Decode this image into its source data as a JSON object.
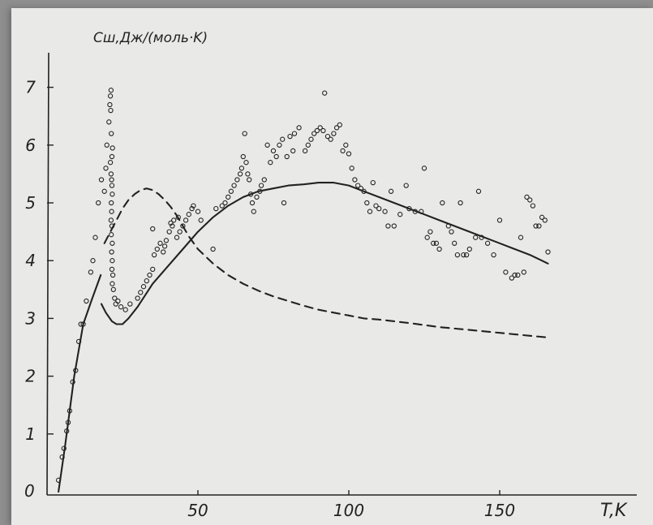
{
  "chart_data": {
    "type": "scatter",
    "title": "",
    "ylabel": "Cш,Дж/(моль·K)",
    "xlabel": "T,K",
    "origin_label": "0",
    "xlim": [
      0,
      190
    ],
    "ylim": [
      0,
      7.5
    ],
    "x_ticks": [
      {
        "value": 50,
        "label": "50"
      },
      {
        "value": 100,
        "label": "100"
      },
      {
        "value": 150,
        "label": "150"
      }
    ],
    "y_ticks": [
      {
        "value": 1,
        "label": "1"
      },
      {
        "value": 2,
        "label": "2"
      },
      {
        "value": 3,
        "label": "3"
      },
      {
        "value": 4,
        "label": "4"
      },
      {
        "value": 5,
        "label": "5"
      },
      {
        "value": 6,
        "label": "6"
      },
      {
        "value": 7,
        "label": "7"
      }
    ],
    "grid": false,
    "colors": {
      "ink": "#222222",
      "paper": "#e9e9e7"
    },
    "series": [
      {
        "kind": "markers",
        "marker": "open-circle",
        "points": [
          [
            3.8,
            0.2
          ],
          [
            5,
            0.6
          ],
          [
            5.6,
            0.75
          ],
          [
            6.5,
            1.05
          ],
          [
            7,
            1.2
          ],
          [
            7.5,
            1.4
          ],
          [
            8.5,
            1.9
          ],
          [
            9.5,
            2.1
          ],
          [
            10.5,
            2.6
          ],
          [
            11.2,
            2.9
          ],
          [
            12,
            2.9
          ],
          [
            13,
            3.3
          ],
          [
            14.5,
            3.8
          ],
          [
            15.2,
            4.0
          ],
          [
            16,
            4.4
          ],
          [
            17,
            5.0
          ],
          [
            18,
            5.4
          ],
          [
            19,
            5.2
          ],
          [
            19.5,
            5.6
          ],
          [
            19.8,
            6.0
          ],
          [
            20.5,
            6.4
          ],
          [
            20.8,
            6.7
          ],
          [
            21,
            6.85
          ],
          [
            21.2,
            6.95
          ],
          [
            21.1,
            6.6
          ],
          [
            21.3,
            6.2
          ],
          [
            21.5,
            5.8
          ],
          [
            21.7,
            5.95
          ],
          [
            21,
            5.7
          ],
          [
            21.2,
            5.5
          ],
          [
            21.4,
            5.4
          ],
          [
            21.5,
            5.3
          ],
          [
            21.6,
            5.15
          ],
          [
            21.3,
            5.0
          ],
          [
            21.4,
            4.85
          ],
          [
            21.2,
            4.7
          ],
          [
            21.5,
            4.6
          ],
          [
            21.3,
            4.45
          ],
          [
            21.6,
            4.3
          ],
          [
            21.4,
            4.15
          ],
          [
            21.6,
            4.0
          ],
          [
            21.5,
            3.85
          ],
          [
            21.8,
            3.75
          ],
          [
            21.6,
            3.6
          ],
          [
            22,
            3.5
          ],
          [
            22.4,
            3.35
          ],
          [
            22.8,
            3.25
          ],
          [
            23.5,
            3.3
          ],
          [
            24.5,
            3.2
          ],
          [
            26,
            3.15
          ],
          [
            27.5,
            3.25
          ],
          [
            30,
            3.35
          ],
          [
            31,
            3.45
          ],
          [
            32,
            3.55
          ],
          [
            33,
            3.65
          ],
          [
            34,
            3.75
          ],
          [
            35,
            3.85
          ],
          [
            35.5,
            4.1
          ],
          [
            36.5,
            4.2
          ],
          [
            37.5,
            4.3
          ],
          [
            38.5,
            4.15
          ],
          [
            39.5,
            4.35
          ],
          [
            40.5,
            4.5
          ],
          [
            41.5,
            4.6
          ],
          [
            42,
            4.7
          ],
          [
            43,
            4.4
          ],
          [
            44,
            4.5
          ],
          [
            45,
            4.6
          ],
          [
            46,
            4.7
          ],
          [
            47,
            4.8
          ],
          [
            48,
            4.9
          ],
          [
            50,
            4.85
          ],
          [
            51,
            4.7
          ],
          [
            35,
            4.55
          ],
          [
            39,
            4.25
          ],
          [
            41,
            4.65
          ],
          [
            43.5,
            4.75
          ],
          [
            48.5,
            4.95
          ],
          [
            55,
            4.2
          ],
          [
            56,
            4.9
          ],
          [
            58,
            4.95
          ],
          [
            59,
            5.0
          ],
          [
            60,
            5.1
          ],
          [
            61,
            5.2
          ],
          [
            62,
            5.3
          ],
          [
            63,
            5.4
          ],
          [
            64,
            5.5
          ],
          [
            64.5,
            5.6
          ],
          [
            65,
            5.8
          ],
          [
            65.5,
            6.2
          ],
          [
            66,
            5.7
          ],
          [
            66.5,
            5.5
          ],
          [
            67,
            5.4
          ],
          [
            67.5,
            5.15
          ],
          [
            68,
            5.0
          ],
          [
            68.5,
            4.85
          ],
          [
            69.5,
            5.1
          ],
          [
            70.5,
            5.2
          ],
          [
            71,
            5.3
          ],
          [
            72,
            5.4
          ],
          [
            73,
            6.0
          ],
          [
            74,
            5.7
          ],
          [
            75,
            5.9
          ],
          [
            76,
            5.8
          ],
          [
            77,
            6.0
          ],
          [
            78,
            6.1
          ],
          [
            78.5,
            5.0
          ],
          [
            79.5,
            5.8
          ],
          [
            80.5,
            6.15
          ],
          [
            81.5,
            5.9
          ],
          [
            82,
            6.2
          ],
          [
            83.5,
            6.3
          ],
          [
            85.5,
            5.9
          ],
          [
            86.5,
            6.0
          ],
          [
            87.5,
            6.1
          ],
          [
            88.5,
            6.2
          ],
          [
            89.5,
            6.25
          ],
          [
            90.5,
            6.3
          ],
          [
            91.5,
            6.25
          ],
          [
            92,
            6.9
          ],
          [
            93,
            6.15
          ],
          [
            94,
            6.1
          ],
          [
            95,
            6.2
          ],
          [
            96,
            6.3
          ],
          [
            97,
            6.35
          ],
          [
            98,
            5.9
          ],
          [
            99,
            6.0
          ],
          [
            100,
            5.85
          ],
          [
            101,
            5.6
          ],
          [
            102,
            5.4
          ],
          [
            103,
            5.3
          ],
          [
            104,
            5.25
          ],
          [
            105,
            5.2
          ],
          [
            106,
            5.0
          ],
          [
            107,
            4.85
          ],
          [
            108,
            5.35
          ],
          [
            109,
            4.95
          ],
          [
            110,
            4.9
          ],
          [
            112,
            4.85
          ],
          [
            113,
            4.6
          ],
          [
            114,
            5.2
          ],
          [
            115,
            4.6
          ],
          [
            117,
            4.8
          ],
          [
            119,
            5.3
          ],
          [
            120,
            4.9
          ],
          [
            122,
            4.85
          ],
          [
            124,
            4.85
          ],
          [
            125,
            5.6
          ],
          [
            126,
            4.4
          ],
          [
            127,
            4.5
          ],
          [
            128,
            4.3
          ],
          [
            129,
            4.3
          ],
          [
            130,
            4.2
          ],
          [
            131,
            5.0
          ],
          [
            133,
            4.6
          ],
          [
            134,
            4.5
          ],
          [
            135,
            4.3
          ],
          [
            136,
            4.1
          ],
          [
            137,
            5.0
          ],
          [
            138,
            4.1
          ],
          [
            139,
            4.1
          ],
          [
            140,
            4.2
          ],
          [
            142,
            4.4
          ],
          [
            143,
            5.2
          ],
          [
            144,
            4.4
          ],
          [
            146,
            4.3
          ],
          [
            148,
            4.1
          ],
          [
            150,
            4.7
          ],
          [
            152,
            3.8
          ],
          [
            154,
            3.7
          ],
          [
            155,
            3.75
          ],
          [
            156,
            3.75
          ],
          [
            157,
            4.4
          ],
          [
            158,
            3.8
          ],
          [
            159,
            5.1
          ],
          [
            160,
            5.05
          ],
          [
            161,
            4.95
          ],
          [
            162,
            4.6
          ],
          [
            163,
            4.6
          ],
          [
            164,
            4.75
          ],
          [
            165,
            4.7
          ],
          [
            166,
            4.15
          ]
        ]
      },
      {
        "kind": "line",
        "style": "solid",
        "points": [
          [
            3.8,
            0.0
          ],
          [
            6,
            0.8
          ],
          [
            9,
            2.0
          ],
          [
            12,
            2.9
          ],
          [
            15,
            3.35
          ],
          [
            17.8,
            3.75
          ]
        ]
      },
      {
        "kind": "line",
        "style": "solid",
        "points": [
          [
            18,
            3.25
          ],
          [
            19.5,
            3.1
          ],
          [
            21.5,
            2.95
          ],
          [
            23,
            2.9
          ],
          [
            25,
            2.9
          ],
          [
            27,
            3.0
          ],
          [
            30,
            3.2
          ],
          [
            35,
            3.6
          ],
          [
            40,
            3.9
          ],
          [
            45,
            4.2
          ],
          [
            50,
            4.5
          ],
          [
            55,
            4.75
          ],
          [
            60,
            4.95
          ],
          [
            65,
            5.1
          ],
          [
            70,
            5.2
          ],
          [
            75,
            5.25
          ],
          [
            80,
            5.3
          ],
          [
            85,
            5.32
          ],
          [
            90,
            5.35
          ],
          [
            95,
            5.35
          ],
          [
            100,
            5.3
          ],
          [
            105,
            5.2
          ],
          [
            110,
            5.1
          ],
          [
            115,
            5.0
          ],
          [
            120,
            4.9
          ],
          [
            125,
            4.8
          ],
          [
            130,
            4.7
          ],
          [
            135,
            4.6
          ],
          [
            140,
            4.5
          ],
          [
            145,
            4.4
          ],
          [
            150,
            4.3
          ],
          [
            155,
            4.2
          ],
          [
            160,
            4.1
          ],
          [
            164,
            4.0
          ],
          [
            166,
            3.95
          ]
        ]
      },
      {
        "kind": "line",
        "style": "dashed",
        "points": [
          [
            19,
            4.3
          ],
          [
            21,
            4.5
          ],
          [
            23,
            4.7
          ],
          [
            25,
            4.9
          ],
          [
            27,
            5.05
          ],
          [
            29,
            5.15
          ],
          [
            31,
            5.22
          ],
          [
            33,
            5.25
          ],
          [
            35,
            5.22
          ],
          [
            37,
            5.15
          ],
          [
            39,
            5.05
          ],
          [
            41,
            4.93
          ],
          [
            43,
            4.78
          ],
          [
            45,
            4.6
          ],
          [
            47,
            4.42
          ],
          [
            50,
            4.2
          ],
          [
            55,
            3.95
          ],
          [
            60,
            3.75
          ],
          [
            65,
            3.6
          ],
          [
            70,
            3.48
          ],
          [
            75,
            3.38
          ],
          [
            80,
            3.3
          ],
          [
            85,
            3.22
          ],
          [
            90,
            3.15
          ],
          [
            95,
            3.1
          ],
          [
            100,
            3.05
          ],
          [
            105,
            3.0
          ],
          [
            110,
            2.98
          ],
          [
            120,
            2.92
          ],
          [
            130,
            2.85
          ],
          [
            140,
            2.8
          ],
          [
            150,
            2.75
          ],
          [
            160,
            2.7
          ],
          [
            166,
            2.67
          ]
        ]
      }
    ]
  }
}
